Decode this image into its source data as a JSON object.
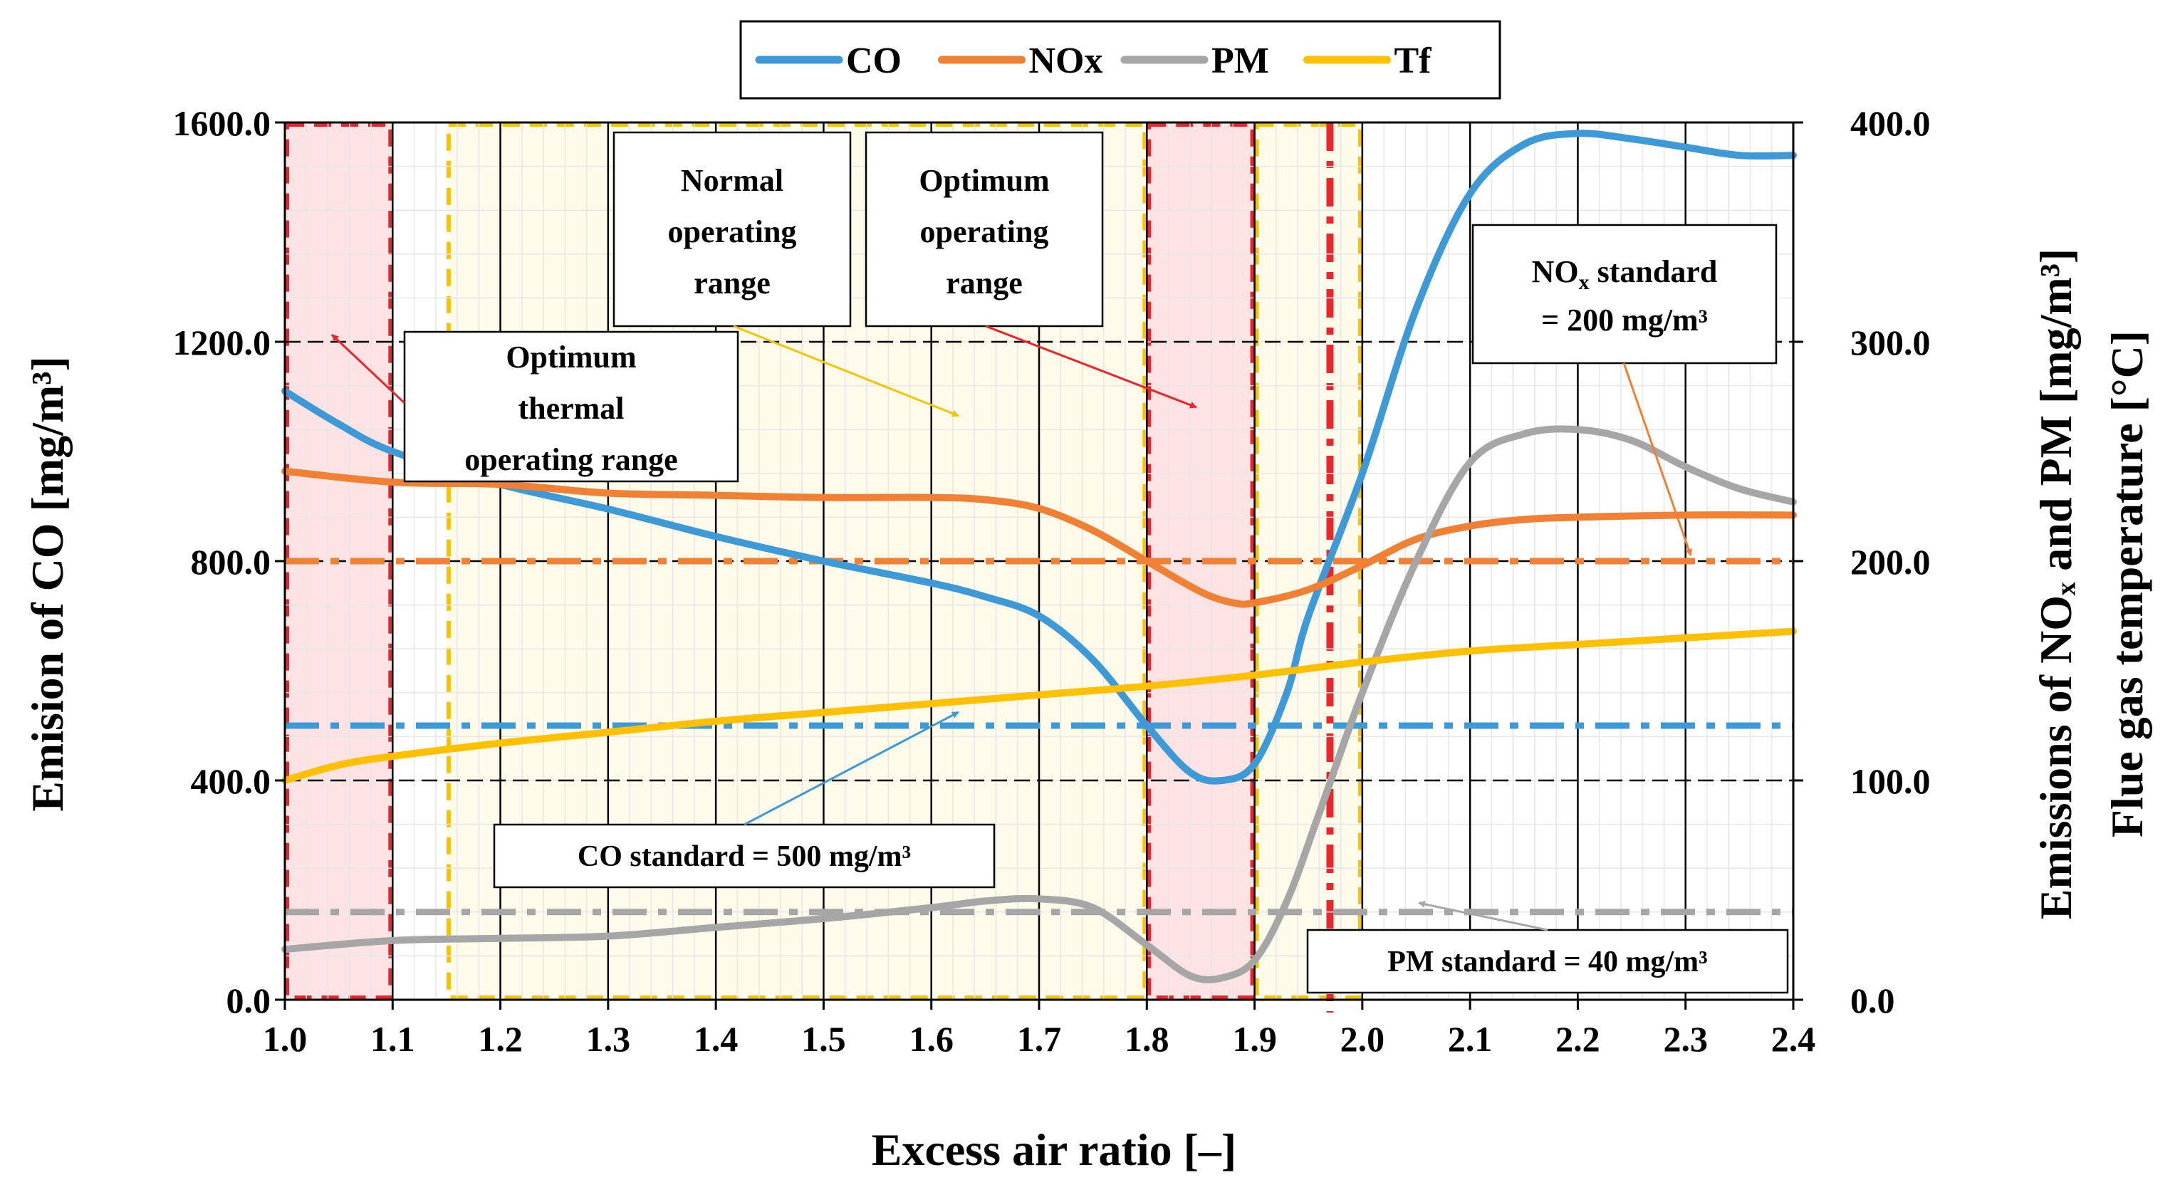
{
  "chart_data": {
    "type": "line",
    "xlabel": "Excess air ratio [–]",
    "ylabel_left": "Emision of CO [mg/m³]",
    "ylabel_right_line1": "Emissions of NOₓ and PM [mg/m³]",
    "ylabel_right_line2": "Flue gas temperature [°C]",
    "xlim": [
      1.0,
      2.4
    ],
    "ylim_left": [
      0,
      1600
    ],
    "ylim_right": [
      0,
      400
    ],
    "x_ticks": [
      "1.0",
      "1.1",
      "1.2",
      "1.3",
      "1.4",
      "1.5",
      "1.6",
      "1.7",
      "1.8",
      "1.9",
      "2.0",
      "2.1",
      "2.2",
      "2.3",
      "2.4"
    ],
    "y_ticks_left": [
      "0.0",
      "400.0",
      "800.0",
      "1200.0",
      "1600.0"
    ],
    "y_ticks_right": [
      "0.0",
      "100.0",
      "200.0",
      "300.0",
      "400.0"
    ],
    "grid": true,
    "legend_position": "top-center",
    "series": [
      {
        "name": "CO",
        "axis": "left",
        "color": "#3d9ad6",
        "x": [
          1.0,
          1.05,
          1.1,
          1.2,
          1.3,
          1.4,
          1.5,
          1.6,
          1.65,
          1.7,
          1.75,
          1.8,
          1.84,
          1.87,
          1.9,
          1.93,
          1.95,
          2.0,
          2.05,
          2.1,
          2.15,
          2.2,
          2.25,
          2.3,
          2.35,
          2.4
        ],
        "values": [
          1110,
          1050,
          1000,
          940,
          895,
          845,
          800,
          760,
          735,
          700,
          620,
          500,
          415,
          400,
          430,
          560,
          700,
          960,
          1260,
          1470,
          1560,
          1580,
          1570,
          1555,
          1540,
          1540
        ]
      },
      {
        "name": "NOx",
        "axis": "right",
        "color": "#f08033",
        "x": [
          1.0,
          1.1,
          1.2,
          1.3,
          1.4,
          1.5,
          1.6,
          1.65,
          1.7,
          1.75,
          1.8,
          1.85,
          1.88,
          1.9,
          1.95,
          2.0,
          2.05,
          2.1,
          2.15,
          2.2,
          2.3,
          2.4
        ],
        "values": [
          241,
          236,
          235,
          231,
          230,
          229,
          229,
          228,
          224,
          214,
          200,
          186,
          181,
          181,
          187,
          198,
          210,
          216,
          219,
          220,
          221,
          221
        ]
      },
      {
        "name": "PM",
        "axis": "right",
        "color": "#a6a6a6",
        "x": [
          1.0,
          1.1,
          1.2,
          1.3,
          1.4,
          1.5,
          1.6,
          1.65,
          1.7,
          1.75,
          1.8,
          1.84,
          1.87,
          1.9,
          1.93,
          1.96,
          2.0,
          2.05,
          2.1,
          2.15,
          2.2,
          2.25,
          2.3,
          2.35,
          2.4
        ],
        "values": [
          23,
          27,
          28,
          29,
          33,
          37,
          42,
          45,
          46,
          42,
          25,
          11,
          10,
          18,
          45,
          85,
          140,
          200,
          245,
          258,
          260,
          255,
          243,
          233,
          227
        ]
      },
      {
        "name": "Tf",
        "axis": "right",
        "color": "#ffc000",
        "x": [
          1.0,
          1.05,
          1.1,
          1.2,
          1.3,
          1.4,
          1.5,
          1.6,
          1.7,
          1.8,
          1.9,
          2.0,
          2.1,
          2.2,
          2.3,
          2.4
        ],
        "values": [
          100,
          107,
          111,
          117,
          122,
          127,
          131,
          135,
          139,
          143,
          148,
          154,
          159,
          162,
          165,
          168
        ]
      }
    ],
    "standards": [
      {
        "name": "CO standard",
        "axis": "left",
        "value": 500,
        "color": "#3d9ad6"
      },
      {
        "name": "NOx standard",
        "axis": "right",
        "value": 200,
        "color": "#f08033"
      },
      {
        "name": "PM standard",
        "axis": "right",
        "value": 40,
        "color": "#a6a6a6"
      }
    ],
    "regions": [
      {
        "name": "Optimum thermal operating range",
        "type": "optimum",
        "x0": 1.0,
        "x1": 1.1
      },
      {
        "name": "Normal operating range",
        "type": "normal",
        "x0": 1.15,
        "x1": 1.8
      },
      {
        "name": "Optimum operating range",
        "type": "optimum",
        "x0": 1.8,
        "x1": 1.9
      },
      {
        "name": "Normal operating range",
        "type": "normal",
        "x0": 1.9,
        "x1": 2.0
      }
    ],
    "marker_line_x": 1.97,
    "annotations": {
      "thermal_line1": "Optimum",
      "thermal_line2": "thermal",
      "thermal_line3": "operating range",
      "normal_line1": "Normal",
      "normal_line2": "operating",
      "normal_line3": "range",
      "optimum_line1": "Optimum",
      "optimum_line2": "operating",
      "optimum_line3": "range",
      "nox_line1_a": "NO",
      "nox_line1_sub": "x",
      "nox_line1_b": " standard",
      "nox_line2": "= 200 mg/m³",
      "co_std": "CO standard = 500 mg/m³",
      "pm_std": "PM standard = 40 mg/m³"
    },
    "colors": {
      "optimum_fill": "#fde3e3",
      "normal_fill": "#fffbea",
      "region_border_red": "#e8262b",
      "region_border_yellow": "#f5c400"
    }
  }
}
